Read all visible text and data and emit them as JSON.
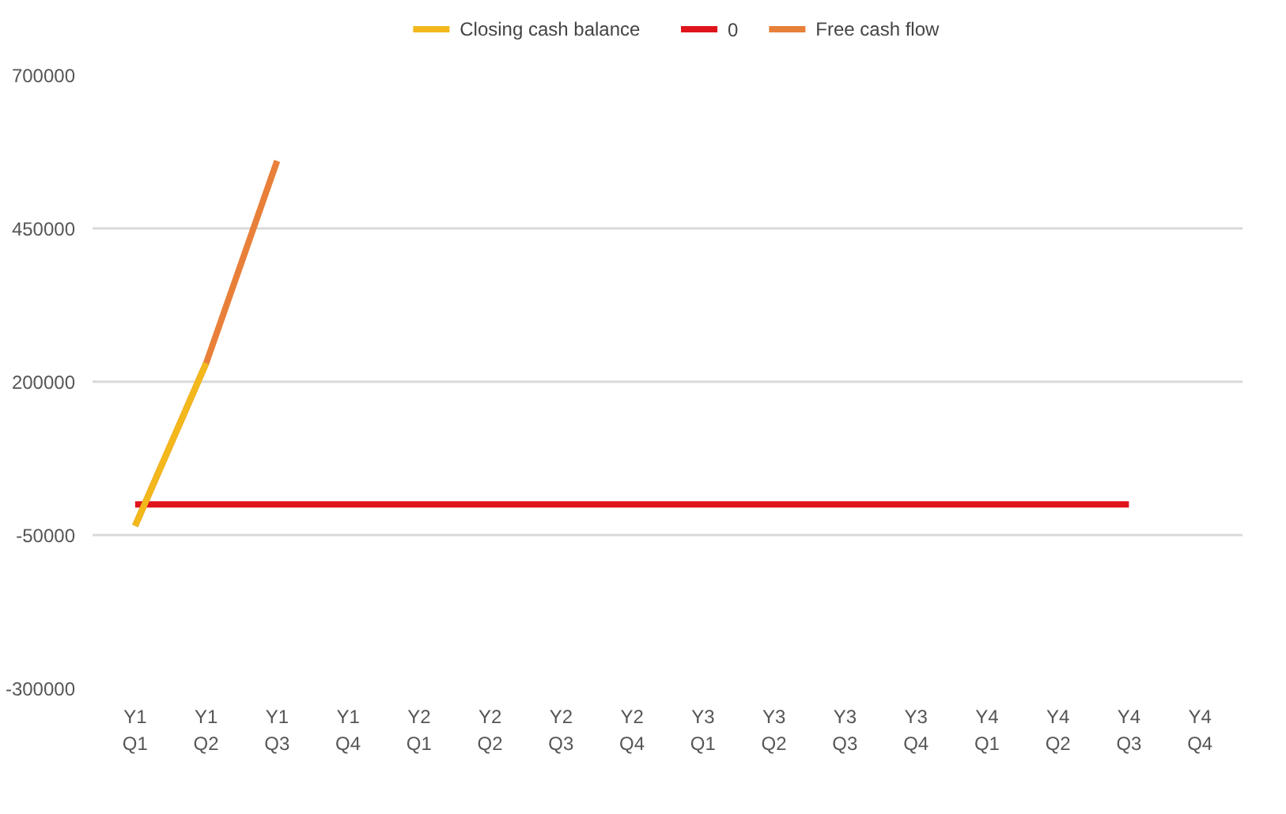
{
  "chart_data": {
    "type": "line",
    "categories": [
      "Y1\nQ1",
      "Y1\nQ2",
      "Y1\nQ3",
      "Y1\nQ4",
      "Y2\nQ1",
      "Y2\nQ2",
      "Y2\nQ3",
      "Y2\nQ4",
      "Y3\nQ1",
      "Y3\nQ2",
      "Y3\nQ3",
      "Y3\nQ4",
      "Y4\nQ1",
      "Y4\nQ2",
      "Y4\nQ3",
      "Y4\nQ4"
    ],
    "series": [
      {
        "name": "Closing cash balance",
        "color": "#f2b81c",
        "values": [
          -35000,
          230000,
          null,
          null,
          null,
          null,
          null,
          null,
          null,
          null,
          null,
          null,
          null,
          null,
          null,
          null
        ]
      },
      {
        "name": "0",
        "color": "#e0141c",
        "values": [
          0,
          0,
          0,
          0,
          0,
          0,
          0,
          0,
          0,
          0,
          0,
          0,
          0,
          0,
          0,
          null
        ]
      },
      {
        "name": "Free cash flow",
        "color": "#e8803a",
        "values": [
          -35000,
          230000,
          560000,
          null,
          null,
          null,
          null,
          null,
          null,
          null,
          null,
          null,
          null,
          null,
          null,
          null
        ]
      }
    ],
    "ylim": [
      -300000,
      700000
    ],
    "yticks": [
      -300000,
      -50000,
      200000,
      450000,
      700000
    ],
    "grid": "y",
    "legend": "top"
  }
}
